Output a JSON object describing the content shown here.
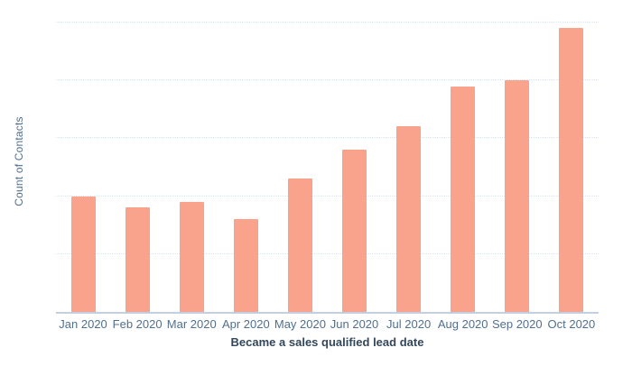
{
  "colors": {
    "background": "#ffffff",
    "bar": "#f9a28c",
    "axis_line": "#c3cfde",
    "gridline": "#dfe4ec",
    "tick_label": "#516f90",
    "axis_title": "#33475b",
    "y_axis_label": "#516f90"
  },
  "chart_data": {
    "type": "bar",
    "categories": [
      "Jan 2020",
      "Feb 2020",
      "Mar 2020",
      "Apr 2020",
      "May 2020",
      "Jun 2020",
      "Jul 2020",
      "Aug 2020",
      "Sep 2020",
      "Oct 2020"
    ],
    "values": [
      20,
      18,
      19,
      16,
      23,
      28,
      32,
      39,
      40,
      49
    ],
    "title": "",
    "xlabel": "Became a sales qualified lead date",
    "ylabel": "Count of Contacts",
    "ylim": [
      0,
      52
    ],
    "gridline_step": 10,
    "grid": "horizontal-dotted",
    "y_tick_labels": "none",
    "legend": "none"
  }
}
